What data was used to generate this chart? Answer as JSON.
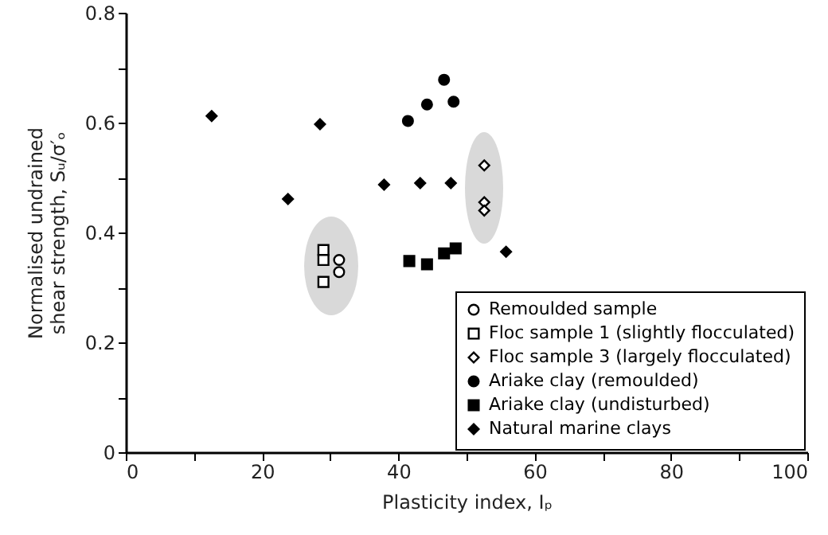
{
  "chart_data": {
    "type": "scatter",
    "xlabel": "Plasticity index, Iₚ",
    "ylabel": "Normalised undrained\nshear strength, Sᵤ/σ′ₒ",
    "xlim": [
      0,
      100
    ],
    "xticks": [
      0,
      {
        "value": 10,
        "label": null
      },
      20,
      {
        "value": 30,
        "label": null
      },
      40,
      {
        "value": 50,
        "label": null
      },
      60,
      {
        "value": 70,
        "label": null
      },
      80,
      {
        "value": 90,
        "label": null
      },
      100
    ],
    "ylim": [
      0,
      0.8
    ],
    "yticks": [
      0,
      {
        "value": 0.1,
        "label": null
      },
      0.2,
      {
        "value": 0.3,
        "label": null
      },
      0.4,
      {
        "value": 0.5,
        "label": null
      },
      0.6,
      {
        "value": 0.7,
        "label": null
      },
      0.8
    ],
    "grid": false,
    "legend": "bottom right",
    "series": [
      {
        "name": "Remoulded sample",
        "color": "#ffffff",
        "marker": "circle",
        "x": [
          31.3,
          31.3
        ],
        "values": [
          0.35,
          0.328
        ]
      },
      {
        "name": "Floc sample 1 (slightly flocculated)",
        "color": "#ffffff",
        "marker": "square",
        "x": [
          29.0,
          29.0,
          29.0
        ],
        "values": [
          0.368,
          0.35,
          0.31
        ]
      },
      {
        "name": "Floc sample 3 (largely flocculated)",
        "color": "#ffffff",
        "marker": "diamond",
        "x": [
          52.6,
          52.6,
          52.6
        ],
        "values": [
          0.522,
          0.455,
          0.44
        ]
      },
      {
        "name": "Ariake clay (remoulded)",
        "color": "#000000",
        "marker": "circle",
        "x": [
          41.4,
          44.2,
          46.7,
          48.1
        ],
        "values": [
          0.603,
          0.633,
          0.678,
          0.638
        ]
      },
      {
        "name": "Ariake clay (undisturbed)",
        "color": "#000000",
        "marker": "square",
        "x": [
          41.6,
          44.2,
          46.7,
          48.4
        ],
        "values": [
          0.348,
          0.342,
          0.362,
          0.371
        ]
      },
      {
        "name": "Natural marine clays",
        "color": "#000000",
        "marker": "diamond",
        "x": [
          12.6,
          23.8,
          28.5,
          37.9,
          43.2,
          47.7,
          55.8
        ],
        "values": [
          0.612,
          0.461,
          0.597,
          0.487,
          0.49,
          0.49,
          0.365
        ]
      }
    ]
  }
}
